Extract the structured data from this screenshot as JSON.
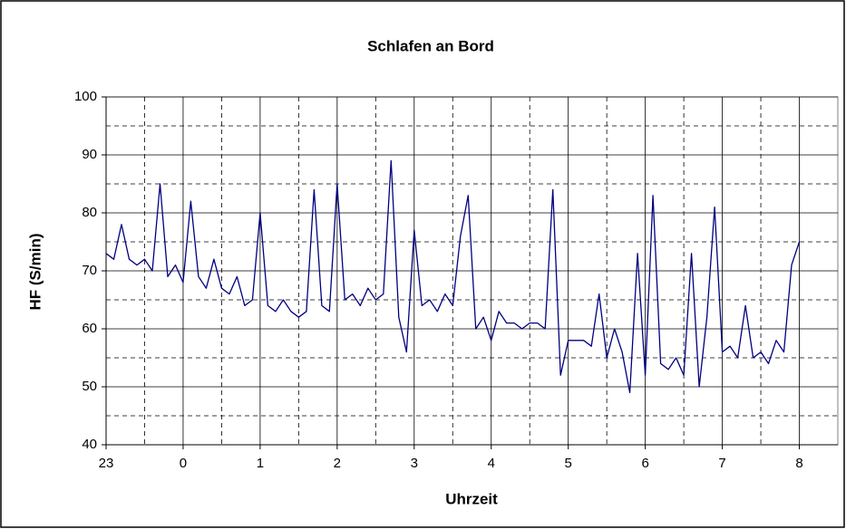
{
  "chart_data": {
    "type": "line",
    "title": "Schlafen an Bord",
    "x_label": "Uhrzeit",
    "y_label": "HF (S/min)",
    "x": [
      0,
      0.1,
      0.2,
      0.3,
      0.4,
      0.5,
      0.6,
      0.7,
      0.8,
      0.9,
      1,
      1.1,
      1.2,
      1.3,
      1.4,
      1.5,
      1.6,
      1.7,
      1.8,
      1.9,
      2,
      2.1,
      2.2,
      2.3,
      2.4,
      2.5,
      2.6,
      2.7,
      2.8,
      2.9,
      3,
      3.1,
      3.2,
      3.3,
      3.4,
      3.5,
      3.6,
      3.7,
      3.8,
      3.9,
      4,
      4.1,
      4.2,
      4.3,
      4.4,
      4.5,
      4.6,
      4.7,
      4.8,
      4.9,
      5,
      5.1,
      5.2,
      5.3,
      5.4,
      5.5,
      5.6,
      5.7,
      5.8,
      5.9,
      6,
      6.1,
      6.2,
      6.3,
      6.4,
      6.5,
      6.6,
      6.7,
      6.8,
      6.9,
      7,
      7.1,
      7.2,
      7.3,
      7.4,
      7.5,
      7.6,
      7.7,
      7.8,
      7.9,
      8,
      8.1,
      8.2,
      8.3,
      8.4,
      8.5,
      8.6,
      8.7,
      8.8,
      8.9,
      9
    ],
    "series": [
      {
        "name": "HF",
        "color": "#000080",
        "values": [
          73,
          72,
          78,
          72,
          71,
          72,
          70,
          85,
          69,
          71,
          68,
          82,
          69,
          67,
          72,
          67,
          66,
          69,
          64,
          65,
          80,
          64,
          63,
          65,
          63,
          62,
          63,
          84,
          64,
          63,
          85,
          65,
          66,
          64,
          67,
          65,
          66,
          89,
          62,
          56,
          77,
          64,
          65,
          63,
          66,
          64,
          76,
          83,
          60,
          62,
          58,
          63,
          61,
          61,
          60,
          61,
          61,
          60,
          84,
          52,
          58,
          58,
          58,
          57,
          66,
          55,
          60,
          56,
          49,
          73,
          52,
          83,
          54,
          53,
          55,
          52,
          73,
          50,
          62,
          81,
          56,
          57,
          55,
          64,
          55,
          56,
          54,
          58,
          56,
          71,
          75
        ]
      }
    ],
    "xlim": [
      0,
      9.5
    ],
    "xticks": [
      {
        "value": 0,
        "label": "23"
      },
      {
        "value": 1,
        "label": "0"
      },
      {
        "value": 2,
        "label": "1"
      },
      {
        "value": 3,
        "label": "2"
      },
      {
        "value": 4,
        "label": "3"
      },
      {
        "value": 5,
        "label": "4"
      },
      {
        "value": 6,
        "label": "5"
      },
      {
        "value": 7,
        "label": "6"
      },
      {
        "value": 8,
        "label": "7"
      },
      {
        "value": 9,
        "label": "8"
      }
    ],
    "xminor": [
      0.5,
      1.5,
      2.5,
      3.5,
      4.5,
      5.5,
      6.5,
      7.5,
      8.5
    ],
    "ylim": [
      40,
      100
    ],
    "yticks": [
      40,
      50,
      60,
      70,
      80,
      90,
      100
    ],
    "yminor": [
      45,
      55,
      65,
      75,
      85,
      95
    ],
    "grid": true
  }
}
